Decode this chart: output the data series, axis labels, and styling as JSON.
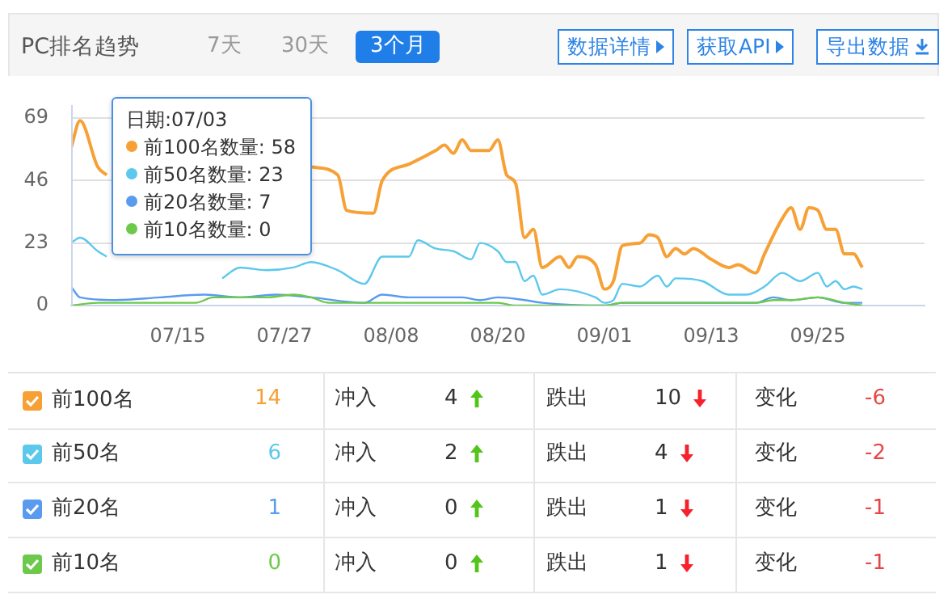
{
  "chart_data": [
    {
      "type": "line",
      "title": "PC排名趋势",
      "xlim": [
        "--07-03",
        "--10-07"
      ],
      "xticks": [
        {
          "value": "--07-15",
          "label": "07/15"
        },
        {
          "value": "--07-27",
          "label": "07/27"
        },
        {
          "value": "--08-08",
          "label": "08/08"
        },
        {
          "value": "--08-20",
          "label": "08/20"
        },
        {
          "value": "--09-01",
          "label": "09/01"
        },
        {
          "value": "--09-13",
          "label": "09/13"
        },
        {
          "value": "--09-25",
          "label": "09/25"
        }
      ],
      "ylim": [
        0,
        69
      ],
      "yticks": [
        0,
        23,
        46,
        69
      ],
      "grid": "y",
      "legend": "bottom",
      "marker": "none",
      "line_style": "solid",
      "series": [
        {
          "name": "前100名",
          "color": "#f7a035",
          "x": [
            "--07-03",
            "--07-04",
            "--07-06",
            "--07-07",
            "--07-15",
            "--07-30",
            "--08-02",
            "--08-03",
            "--08-06",
            "--08-07",
            "--08-10",
            "--08-13",
            "--08-14",
            "--08-15",
            "--08-16",
            "--08-17",
            "--08-19",
            "--08-20",
            "--08-21",
            "--08-22",
            "--08-23",
            "--08-24",
            "--08-25",
            "--08-27",
            "--08-28",
            "--08-29",
            "--08-31",
            "--09-01",
            "--09-02",
            "--09-03",
            "--09-05",
            "--09-06",
            "--09-07",
            "--09-08",
            "--09-09",
            "--09-10",
            "--09-11",
            "--09-13",
            "--09-15",
            "--09-16",
            "--09-18",
            "--09-19",
            "--09-21",
            "--09-22",
            "--09-23",
            "--09-24",
            "--09-25",
            "--09-26",
            "--09-27",
            "--09-28",
            "--09-29",
            "--09-30"
          ],
          "values": [
            58,
            68,
            51,
            48,
            null,
            51,
            48,
            35,
            34,
            46,
            52,
            57,
            59,
            56,
            61,
            57,
            57,
            61,
            48,
            45,
            25,
            28,
            14,
            18,
            14,
            18,
            15,
            6,
            9,
            22,
            23,
            26,
            25,
            18,
            21,
            19,
            21,
            17,
            14,
            15,
            12,
            19,
            32,
            36,
            28,
            36,
            35,
            28,
            28,
            19,
            19,
            14
          ]
        },
        {
          "name": "前50名",
          "color": "#5bc8ec",
          "x": [
            "--07-03",
            "--07-04",
            "--07-06",
            "--07-07",
            "--07-12",
            "--07-20",
            "--07-22",
            "--07-25",
            "--07-28",
            "--07-30",
            "--08-02",
            "--08-05",
            "--08-07",
            "--08-10",
            "--08-11",
            "--08-13",
            "--08-15",
            "--08-17",
            "--08-18",
            "--08-20",
            "--08-21",
            "--08-22",
            "--08-23",
            "--08-24",
            "--08-25",
            "--08-27",
            "--08-31",
            "--09-01",
            "--09-02",
            "--09-03",
            "--09-05",
            "--09-07",
            "--09-08",
            "--09-09",
            "--09-12",
            "--09-15",
            "--09-17",
            "--09-19",
            "--09-21",
            "--09-23",
            "--09-25",
            "--09-26",
            "--09-27",
            "--09-28",
            "--09-29",
            "--09-30"
          ],
          "values": [
            23,
            25,
            20,
            18,
            null,
            10,
            14,
            13,
            14,
            16,
            13,
            8,
            18,
            18,
            24,
            21,
            20,
            17,
            23,
            20,
            16,
            16,
            9,
            11,
            4,
            6,
            3,
            1,
            2,
            8,
            7,
            11,
            7,
            10,
            9,
            4,
            4,
            7,
            12,
            9,
            12,
            7,
            9,
            6,
            7,
            6
          ]
        },
        {
          "name": "前20名",
          "color": "#5a9bf0",
          "x": [
            "--07-03",
            "--07-04",
            "--07-08",
            "--07-13",
            "--07-18",
            "--07-22",
            "--07-26",
            "--07-30",
            "--08-05",
            "--08-07",
            "--08-10",
            "--08-16",
            "--08-18",
            "--08-20",
            "--08-23",
            "--08-25",
            "--09-01",
            "--09-03",
            "--09-18",
            "--09-20",
            "--09-22",
            "--09-25",
            "--09-28",
            "--09-30"
          ],
          "values": [
            7,
            3,
            2,
            3,
            4,
            3,
            4,
            3,
            1,
            4,
            3,
            3,
            2,
            3,
            2,
            1,
            0,
            1,
            1,
            3,
            2,
            3,
            1,
            1
          ]
        },
        {
          "name": "前10名",
          "color": "#6cc94a",
          "x": [
            "--07-03",
            "--07-06",
            "--07-17",
            "--07-19",
            "--07-25",
            "--07-28",
            "--07-30",
            "--08-01",
            "--08-10",
            "--08-20",
            "--08-22",
            "--09-01",
            "--09-03",
            "--09-18",
            "--09-20",
            "--09-22",
            "--09-25",
            "--09-28",
            "--09-30"
          ],
          "values": [
            0,
            1,
            1,
            3,
            3,
            4,
            3,
            1,
            1,
            1,
            0,
            0,
            1,
            1,
            2,
            2,
            3,
            1,
            0
          ]
        }
      ],
      "annotations": [
        "7天",
        "30天",
        "3个月",
        "数据详情",
        "获取API",
        "导出数据",
        "日期:07/03",
        "前100名数量: 58",
        "前50名数量: 23",
        "前20名数量: 7",
        "前10名数量: 0"
      ]
    },
    {
      "type": "other",
      "annotations": [
        "14",
        "冲入",
        "4",
        "跌出",
        "10",
        "变化",
        "-6",
        "6",
        "冲入",
        "2",
        "跌出",
        "4",
        "变化",
        "-2",
        "1",
        "冲入",
        "0",
        "跌出",
        "1",
        "变化",
        "-1",
        "0",
        "冲入",
        "0",
        "跌出",
        "1",
        "变化",
        "-1"
      ]
    }
  ]
}
